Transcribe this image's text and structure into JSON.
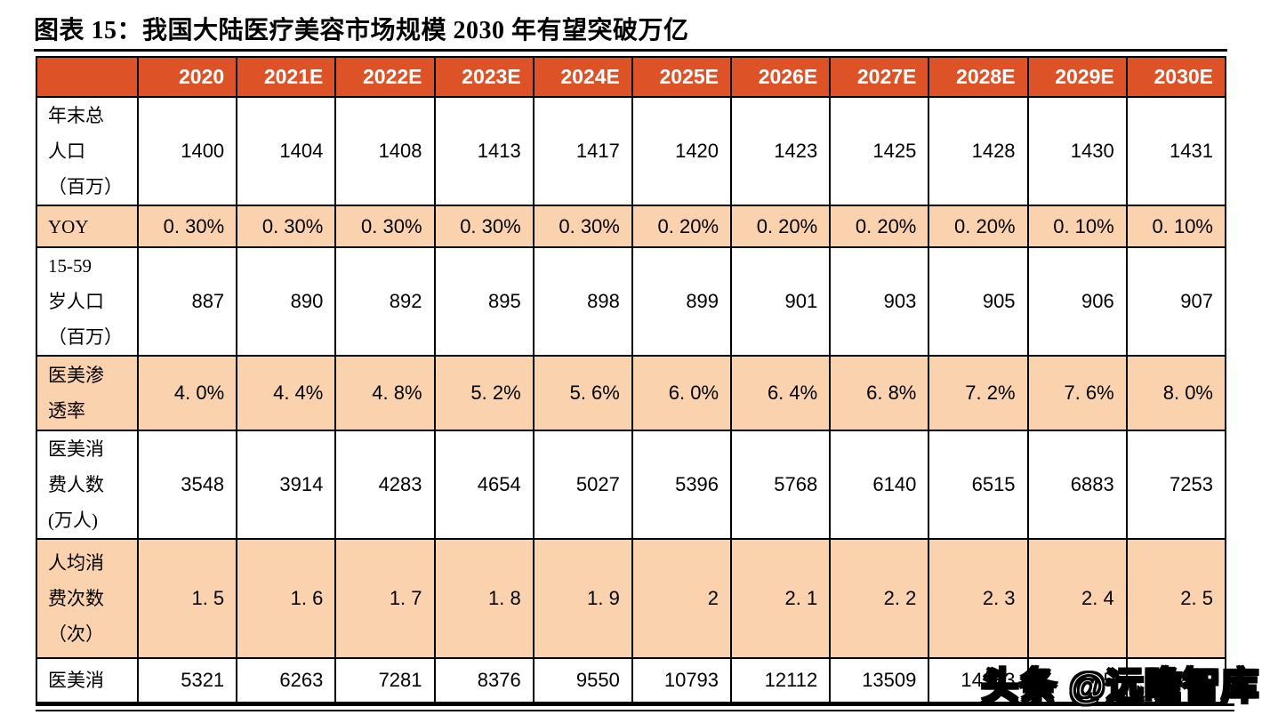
{
  "title": "图表 15：我国大陆医疗美容市场规模 2030 年有望突破万亿",
  "colors": {
    "header_bg": "#DD5227",
    "header_text": "#FFFFFF",
    "shade_bg": "#FAD3AE",
    "border": "#000000"
  },
  "table": {
    "corner_label": "",
    "columns": [
      "2020",
      "2021E",
      "2022E",
      "2023E",
      "2024E",
      "2025E",
      "2026E",
      "2027E",
      "2028E",
      "2029E",
      "2030E"
    ],
    "rows": [
      {
        "label_lines": [
          "年末总",
          "人口",
          "（百万）"
        ],
        "shaded": false,
        "values": [
          "1400",
          "1404",
          "1408",
          "1413",
          "1417",
          "1420",
          "1423",
          "1425",
          "1428",
          "1430",
          "1431"
        ]
      },
      {
        "label_lines": [
          "YOY"
        ],
        "shaded": true,
        "values": [
          "0. 30%",
          "0. 30%",
          "0. 30%",
          "0. 30%",
          "0. 30%",
          "0. 20%",
          "0. 20%",
          "0. 20%",
          "0. 20%",
          "0. 10%",
          "0. 10%"
        ]
      },
      {
        "label_lines": [
          "15-59",
          "岁人口",
          "（百万）"
        ],
        "shaded": false,
        "values": [
          "887",
          "890",
          "892",
          "895",
          "898",
          "899",
          "901",
          "903",
          "905",
          "906",
          "907"
        ]
      },
      {
        "label_lines": [
          "医美渗",
          "透率"
        ],
        "shaded": true,
        "values": [
          "4. 0%",
          "4. 4%",
          "4. 8%",
          "5. 2%",
          "5. 6%",
          "6. 0%",
          "6. 4%",
          "6. 8%",
          "7. 2%",
          "7. 6%",
          "8. 0%"
        ]
      },
      {
        "label_lines": [
          "医美消",
          "费人数",
          "(万人)"
        ],
        "shaded": false,
        "values": [
          "3548",
          "3914",
          "4283",
          "4654",
          "5027",
          "5396",
          "5768",
          "6140",
          "6515",
          "6883",
          "7253"
        ]
      },
      {
        "label_lines": [
          "人均消",
          "费次数",
          "（次）"
        ],
        "shaded": true,
        "values": [
          "1. 5",
          "1. 6",
          "1. 7",
          "1. 8",
          "1. 9",
          "2",
          "2. 1",
          "2. 2",
          "2. 3",
          "2. 4",
          "2. 5"
        ]
      },
      {
        "label_lines": [
          "医美消"
        ],
        "shaded": false,
        "values": [
          "5321",
          "6263",
          "7281",
          "8376",
          "9550",
          "10793",
          "12112",
          "13509",
          "14983",
          "5",
          ""
        ]
      }
    ]
  },
  "watermark": {
    "text": "头条 @远瞻智库"
  }
}
